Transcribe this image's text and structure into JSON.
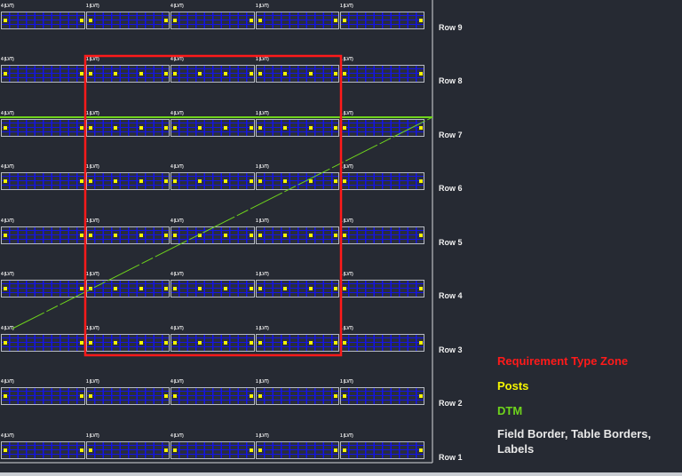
{
  "rows": [
    "Row 9",
    "Row 8",
    "Row 7",
    "Row 6",
    "Row 5",
    "Row 4",
    "Row 3",
    "Row 2",
    "Row 1"
  ],
  "table_labels": [
    "4 (LVT)",
    "1 (LVT)",
    "4 (LVT)",
    "1 (LVT)",
    "1 (LVT)"
  ],
  "zone_rows": [
    "Row 8",
    "Row 7",
    "Row 6",
    "Row 5",
    "Row 4",
    "Row 3"
  ],
  "legend": {
    "zone": "Requirement Type Zone",
    "posts": "Posts",
    "dtm": "DTM",
    "borders": "Field Border, Table Borders,",
    "borders_line2": "Labels"
  },
  "colors": {
    "zone": "#ff1a1a",
    "posts": "#f5f500",
    "dtm": "#6fd41c",
    "borders": "#e8e8e8",
    "table_fill": "#1414e6",
    "background": "#262a33"
  }
}
